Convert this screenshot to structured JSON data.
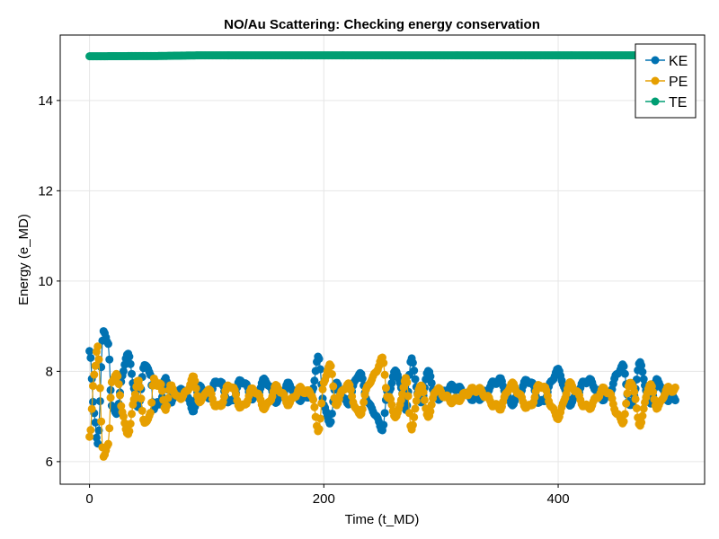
{
  "chart_data": {
    "type": "scatter",
    "title": "NO/Au Scattering: Checking energy conservation",
    "xlabel": "Time (t_MD)",
    "ylabel": "Energy (e_MD)",
    "xlim": [
      -25,
      525
    ],
    "ylim": [
      5.5,
      15.45
    ],
    "xticks": [
      0,
      200,
      400
    ],
    "yticks": [
      6,
      8,
      10,
      12,
      14
    ],
    "xtick_labels": [
      "0",
      "200",
      "400"
    ],
    "ytick_labels": [
      "6",
      "8",
      "10",
      "12",
      "14"
    ],
    "grid": true,
    "legend_position": "top-right",
    "colors": {
      "KE": "#0072b2",
      "PE": "#e69f00",
      "TE": "#009e73"
    },
    "x": {
      "start": 0,
      "end": 500,
      "step": 1
    },
    "series": [
      {
        "name": "KE",
        "key_points": [
          [
            0,
            8.45
          ],
          [
            4,
            7.1
          ],
          [
            7,
            6.4
          ],
          [
            12,
            8.95
          ],
          [
            16,
            8.55
          ],
          [
            19,
            7.3
          ],
          [
            23,
            7.0
          ],
          [
            28,
            7.9
          ],
          [
            33,
            8.45
          ],
          [
            38,
            7.6
          ],
          [
            42,
            7.2
          ],
          [
            47,
            8.2
          ],
          [
            52,
            7.9
          ],
          [
            55,
            7.2
          ],
          [
            60,
            7.3
          ],
          [
            65,
            7.8
          ],
          [
            70,
            7.3
          ],
          [
            75,
            7.6
          ],
          [
            82,
            7.5
          ],
          [
            88,
            7.15
          ],
          [
            95,
            7.7
          ],
          [
            100,
            7.4
          ],
          [
            110,
            7.8
          ],
          [
            120,
            7.3
          ],
          [
            130,
            7.8
          ],
          [
            140,
            7.4
          ],
          [
            150,
            7.8
          ],
          [
            160,
            7.35
          ],
          [
            170,
            7.7
          ],
          [
            180,
            7.4
          ],
          [
            190,
            7.5
          ],
          [
            195,
            8.35
          ],
          [
            200,
            7.3
          ],
          [
            205,
            6.8
          ],
          [
            210,
            7.7
          ],
          [
            220,
            7.3
          ],
          [
            230,
            7.95
          ],
          [
            240,
            7.2
          ],
          [
            250,
            6.75
          ],
          [
            255,
            7.6
          ],
          [
            262,
            8.0
          ],
          [
            270,
            7.2
          ],
          [
            275,
            8.25
          ],
          [
            282,
            7.3
          ],
          [
            290,
            8.0
          ],
          [
            295,
            7.4
          ],
          [
            310,
            7.65
          ],
          [
            330,
            7.4
          ],
          [
            350,
            7.8
          ],
          [
            360,
            7.3
          ],
          [
            375,
            7.8
          ],
          [
            385,
            7.3
          ],
          [
            400,
            8.0
          ],
          [
            410,
            7.3
          ],
          [
            425,
            7.8
          ],
          [
            440,
            7.4
          ],
          [
            455,
            8.1
          ],
          [
            462,
            7.2
          ],
          [
            470,
            8.15
          ],
          [
            478,
            7.3
          ],
          [
            485,
            7.8
          ],
          [
            493,
            7.4
          ],
          [
            500,
            7.4
          ]
        ]
      },
      {
        "name": "PE",
        "key_points": [
          [
            0,
            6.55
          ],
          [
            4,
            7.9
          ],
          [
            7,
            8.55
          ],
          [
            12,
            6.05
          ],
          [
            16,
            6.45
          ],
          [
            19,
            7.7
          ],
          [
            23,
            8.0
          ],
          [
            28,
            7.1
          ],
          [
            33,
            6.55
          ],
          [
            38,
            7.4
          ],
          [
            42,
            7.8
          ],
          [
            47,
            6.8
          ],
          [
            52,
            7.1
          ],
          [
            55,
            7.8
          ],
          [
            60,
            7.7
          ],
          [
            65,
            7.2
          ],
          [
            70,
            7.7
          ],
          [
            75,
            7.4
          ],
          [
            82,
            7.5
          ],
          [
            88,
            7.85
          ],
          [
            95,
            7.3
          ],
          [
            100,
            7.6
          ],
          [
            110,
            7.2
          ],
          [
            120,
            7.7
          ],
          [
            130,
            7.2
          ],
          [
            140,
            7.6
          ],
          [
            150,
            7.2
          ],
          [
            160,
            7.65
          ],
          [
            170,
            7.3
          ],
          [
            180,
            7.6
          ],
          [
            190,
            7.5
          ],
          [
            195,
            6.65
          ],
          [
            200,
            7.7
          ],
          [
            205,
            8.2
          ],
          [
            210,
            7.3
          ],
          [
            220,
            7.7
          ],
          [
            230,
            7.05
          ],
          [
            240,
            7.8
          ],
          [
            250,
            8.25
          ],
          [
            255,
            7.4
          ],
          [
            262,
            7.0
          ],
          [
            270,
            7.8
          ],
          [
            275,
            6.75
          ],
          [
            282,
            7.7
          ],
          [
            290,
            7.0
          ],
          [
            295,
            7.6
          ],
          [
            310,
            7.35
          ],
          [
            330,
            7.6
          ],
          [
            350,
            7.2
          ],
          [
            360,
            7.7
          ],
          [
            375,
            7.2
          ],
          [
            385,
            7.7
          ],
          [
            400,
            7.0
          ],
          [
            410,
            7.7
          ],
          [
            425,
            7.2
          ],
          [
            440,
            7.6
          ],
          [
            455,
            6.9
          ],
          [
            462,
            7.8
          ],
          [
            470,
            6.85
          ],
          [
            478,
            7.7
          ],
          [
            485,
            7.2
          ],
          [
            493,
            7.6
          ],
          [
            500,
            7.6
          ]
        ]
      },
      {
        "name": "TE",
        "key_points": [
          [
            0,
            14.98
          ],
          [
            50,
            14.985
          ],
          [
            100,
            15.0
          ],
          [
            200,
            15.0
          ],
          [
            300,
            15.0
          ],
          [
            400,
            15.0
          ],
          [
            500,
            15.0
          ]
        ]
      }
    ]
  }
}
